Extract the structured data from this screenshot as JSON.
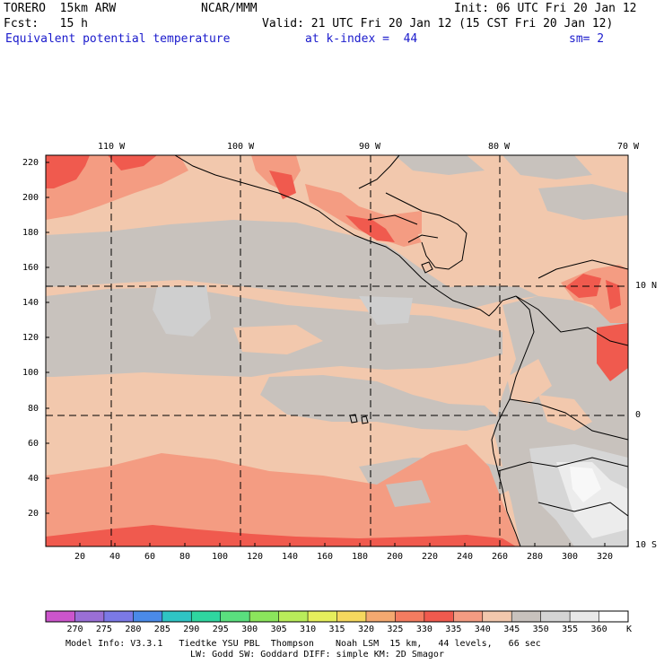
{
  "header": {
    "model": "TORERO  15km ARW",
    "center": "NCAR/MMM",
    "init": "Init: 06 UTC Fri 20 Jan 12",
    "fcst": "Fcst:   15 h",
    "valid": "Valid: 21 UTC Fri 20 Jan 12 (15 CST Fri 20 Jan 12)",
    "field": "Equivalent potential temperature",
    "level": "at k-index =  44",
    "smooth": "sm= 2"
  },
  "map": {
    "lon_labels": [
      "110 W",
      "100 W",
      "90 W",
      "80 W",
      "70 W"
    ],
    "lat_labels": [
      "10 N",
      "0",
      "10 S"
    ],
    "y_ticks": [
      "220",
      "200",
      "180",
      "160",
      "140",
      "120",
      "100",
      "80",
      "60",
      "40",
      "20"
    ],
    "x_ticks": [
      "20",
      "40",
      "60",
      "80",
      "100",
      "120",
      "140",
      "160",
      "180",
      "200",
      "220",
      "240",
      "260",
      "280",
      "300",
      "320"
    ],
    "palette": {
      "dominant": "#f2c8ad",
      "gray": "#c8c2bd",
      "salmon": "#f49c82",
      "red": "#f05a4e",
      "light": "#e6e6e6",
      "white": "#f8f8f8"
    }
  },
  "colorbar": {
    "labels": [
      "270",
      "275",
      "280",
      "285",
      "290",
      "295",
      "300",
      "305",
      "310",
      "315",
      "320",
      "325",
      "330",
      "335",
      "340",
      "345",
      "350",
      "355",
      "360"
    ],
    "unit": "K",
    "colors": [
      "#cc55cc",
      "#9a6fd6",
      "#7b79e6",
      "#4a8ae8",
      "#2fc4c4",
      "#2fd6a0",
      "#5adf7e",
      "#8be55c",
      "#b9ec5a",
      "#e6ef5c",
      "#f6d85e",
      "#f4a970",
      "#f47c60",
      "#f05a4e",
      "#f49c82",
      "#f2c8ad",
      "#c8c2bd",
      "#d4d4d4",
      "#e8e8e8",
      "#ffffff"
    ]
  },
  "footer": {
    "line1": "Model Info: V3.3.1   Tiedtke YSU PBL  Thompson    Noah LSM  15 km,   44 levels,   66 sec",
    "line2": "LW: Godd SW: Goddard DIFF: simple KM: 2D Smagor"
  }
}
